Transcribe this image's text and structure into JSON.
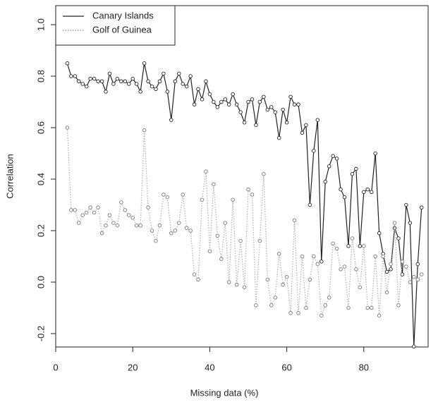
{
  "chart_data": {
    "type": "line",
    "x_label": "Missing data (%)",
    "y_label": "Correlation",
    "x": [
      3,
      4,
      5,
      6,
      7,
      8,
      9,
      10,
      11,
      12,
      13,
      14,
      15,
      16,
      17,
      18,
      19,
      20,
      21,
      22,
      23,
      24,
      25,
      26,
      27,
      28,
      29,
      30,
      31,
      32,
      33,
      34,
      35,
      36,
      37,
      38,
      39,
      40,
      41,
      42,
      43,
      44,
      45,
      46,
      47,
      48,
      49,
      50,
      51,
      52,
      53,
      54,
      55,
      56,
      57,
      58,
      59,
      60,
      61,
      62,
      63,
      64,
      65,
      66,
      67,
      68,
      69,
      70,
      71,
      72,
      73,
      74,
      75,
      76,
      77,
      78,
      79,
      80,
      81,
      82,
      83,
      84,
      85,
      86,
      87,
      88,
      89,
      90,
      91,
      92,
      93,
      94,
      95
    ],
    "series": [
      {
        "name": "Canary Islands",
        "color": "#222222",
        "dash": false,
        "values": [
          0.85,
          0.8,
          0.8,
          0.78,
          0.77,
          0.76,
          0.79,
          0.79,
          0.78,
          0.78,
          0.74,
          0.81,
          0.77,
          0.79,
          0.78,
          0.78,
          0.77,
          0.79,
          0.77,
          0.74,
          0.85,
          0.78,
          0.76,
          0.75,
          0.78,
          0.81,
          0.74,
          0.63,
          0.78,
          0.81,
          0.77,
          0.76,
          0.8,
          0.69,
          0.75,
          0.71,
          0.78,
          0.73,
          0.7,
          0.68,
          0.7,
          0.71,
          0.69,
          0.73,
          0.69,
          0.66,
          0.62,
          0.7,
          0.71,
          0.61,
          0.7,
          0.72,
          0.67,
          0.68,
          0.66,
          0.56,
          0.67,
          0.62,
          0.72,
          0.69,
          0.69,
          0.58,
          0.61,
          0.3,
          0.51,
          0.63,
          0.08,
          0.39,
          0.45,
          0.49,
          0.48,
          0.36,
          0.33,
          0.14,
          0.42,
          0.44,
          0.14,
          0.35,
          0.36,
          0.35,
          0.5,
          0.19,
          0.11,
          0.04,
          0.05,
          0.21,
          0.17,
          0.03,
          0.3,
          0.23,
          -0.25,
          0.07,
          0.29
        ]
      },
      {
        "name": "Golf of Guinea",
        "color": "#b5b5b5",
        "dash": true,
        "values": [
          0.6,
          0.28,
          0.28,
          0.23,
          0.26,
          0.27,
          0.29,
          0.27,
          0.29,
          0.19,
          0.22,
          0.26,
          0.23,
          0.22,
          0.31,
          0.28,
          0.26,
          0.25,
          0.22,
          0.22,
          0.59,
          0.29,
          0.2,
          0.16,
          0.22,
          0.34,
          0.33,
          0.19,
          0.2,
          0.23,
          0.34,
          0.21,
          0.2,
          0.03,
          0.01,
          0.32,
          0.43,
          0.12,
          0.38,
          0.18,
          0.09,
          0.23,
          0.0,
          0.32,
          -0.01,
          0.16,
          -0.02,
          0.36,
          0.34,
          -0.09,
          0.16,
          0.42,
          0.01,
          -0.09,
          -0.06,
          0.11,
          -0.01,
          0.02,
          -0.12,
          0.24,
          -0.12,
          0.1,
          -0.1,
          0.01,
          0.1,
          0.07,
          -0.13,
          -0.09,
          -0.06,
          0.15,
          0.13,
          0.05,
          0.06,
          -0.1,
          0.17,
          0.05,
          -0.02,
          0.14,
          -0.1,
          -0.1,
          0.1,
          -0.13,
          0.1,
          -0.04,
          0.07,
          0.23,
          -0.09,
          0.08,
          0.06,
          0.0,
          0.02,
          0.01,
          0.03
        ]
      }
    ],
    "xlim": [
      0,
      96.7
    ],
    "ylim": [
      -0.252,
      1.074
    ],
    "xticks": [
      0,
      20,
      40,
      60,
      80
    ],
    "yticks": [
      -0.2,
      {
        "value": 0,
        "label": "0.0"
      },
      0.2,
      0.4,
      0.6,
      0.8,
      {
        "value": 1,
        "label": "1.0"
      }
    ],
    "legend": "top-left"
  }
}
